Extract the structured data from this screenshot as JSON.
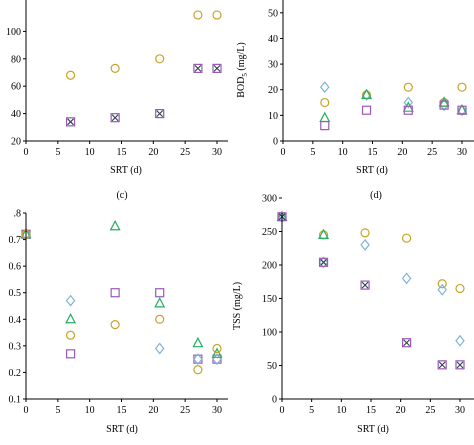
{
  "colors": {
    "circle": "#c9a227",
    "square": "#9b59b6",
    "triangle": "#27ae60",
    "diamond": "#7fb3d5",
    "x_mark": "#2c3e50"
  },
  "chart_data": [
    {
      "id": "top-left",
      "type": "scatter",
      "xlabel": "SRT (d)",
      "ylabel": "",
      "caption": "(c)",
      "xlim": [
        0,
        30
      ],
      "ylim": [
        20,
        120
      ],
      "xticks": [
        "0",
        "5",
        "10",
        "15",
        "20",
        "25",
        "30"
      ],
      "yticks": [
        "20",
        "40",
        "60",
        "80",
        "100"
      ],
      "grid": false,
      "series": [
        {
          "marker": "circle",
          "x": [
            7,
            14,
            21,
            27,
            30
          ],
          "y": [
            68,
            73,
            80,
            112,
            112
          ]
        },
        {
          "marker": "square",
          "x": [
            7,
            14,
            21,
            27,
            30
          ],
          "y": [
            34,
            37,
            40,
            73,
            73
          ]
        },
        {
          "marker": "x",
          "x": [
            7,
            14,
            21,
            27,
            30
          ],
          "y": [
            34,
            37,
            40,
            73,
            73
          ]
        }
      ]
    },
    {
      "id": "top-right",
      "type": "scatter",
      "xlabel": "SRT (d)",
      "ylabel": "BOD5 (mg/L)",
      "caption": "(d)",
      "xlim": [
        0,
        30
      ],
      "ylim": [
        0,
        55
      ],
      "xticks": [
        "0",
        "5",
        "10",
        "15",
        "20",
        "25",
        "30"
      ],
      "yticks": [
        "0",
        "10",
        "20",
        "30",
        "40",
        "50"
      ],
      "grid": false,
      "series": [
        {
          "marker": "diamond",
          "x": [
            7,
            14,
            21,
            27,
            30
          ],
          "y": [
            21,
            18,
            15,
            14,
            12
          ]
        },
        {
          "marker": "circle",
          "x": [
            7,
            14,
            21,
            27,
            30
          ],
          "y": [
            15,
            18,
            21,
            15,
            21
          ]
        },
        {
          "marker": "triangle",
          "x": [
            7,
            14,
            21,
            27,
            30
          ],
          "y": [
            9,
            18,
            13,
            15,
            12
          ]
        },
        {
          "marker": "square",
          "x": [
            7,
            14,
            21,
            27,
            30
          ],
          "y": [
            6,
            12,
            12,
            14,
            12
          ]
        }
      ]
    },
    {
      "id": "bottom-left",
      "type": "scatter",
      "xlabel": "SRT (d)",
      "ylabel": "",
      "xlim": [
        0,
        30
      ],
      "ylim": [
        0.1,
        0.8
      ],
      "xticks": [
        "0",
        "5",
        "10",
        "15",
        "20",
        "25",
        "30"
      ],
      "yticks": [
        ".8",
        "0.7",
        "0.6",
        "0.5",
        "0.4",
        "0.3",
        "0.2",
        "0.1"
      ],
      "grid": false,
      "series": [
        {
          "marker": "square",
          "x": [
            0,
            7,
            14,
            21,
            27,
            30
          ],
          "y": [
            0.72,
            0.27,
            0.5,
            0.5,
            0.25,
            0.25
          ]
        },
        {
          "marker": "diamond",
          "x": [
            0,
            7,
            21,
            27,
            30
          ],
          "y": [
            0.72,
            0.47,
            0.29,
            0.25,
            0.25
          ]
        },
        {
          "marker": "triangle",
          "x": [
            0,
            7,
            14,
            21,
            27,
            30
          ],
          "y": [
            0.72,
            0.4,
            0.75,
            0.46,
            0.31,
            0.27
          ]
        },
        {
          "marker": "circle",
          "x": [
            0,
            7,
            14,
            21,
            27,
            30
          ],
          "y": [
            0.72,
            0.34,
            0.38,
            0.4,
            0.21,
            0.29
          ]
        }
      ]
    },
    {
      "id": "bottom-right",
      "type": "scatter",
      "xlabel": "SRT (d)",
      "ylabel": "TSS (mg/L)",
      "xlim": [
        0,
        30
      ],
      "ylim": [
        0,
        300
      ],
      "xticks": [
        "0",
        "5",
        "10",
        "15",
        "20",
        "25",
        "30"
      ],
      "yticks": [
        "0",
        "50",
        "100",
        "150",
        "200",
        "250",
        "300"
      ],
      "grid": false,
      "series": [
        {
          "marker": "circle",
          "x": [
            0,
            7,
            14,
            21,
            27,
            30
          ],
          "y": [
            272,
            245,
            248,
            240,
            172,
            165
          ]
        },
        {
          "marker": "triangle",
          "x": [
            0,
            7
          ],
          "y": [
            272,
            245
          ]
        },
        {
          "marker": "diamond",
          "x": [
            0,
            7,
            14,
            21,
            27,
            30
          ],
          "y": [
            272,
            204,
            230,
            180,
            163,
            87
          ]
        },
        {
          "marker": "square",
          "x": [
            0,
            7,
            14,
            21,
            27,
            30
          ],
          "y": [
            272,
            204,
            170,
            84,
            51,
            51
          ]
        },
        {
          "marker": "x",
          "x": [
            0,
            7,
            14,
            21,
            27,
            30
          ],
          "y": [
            272,
            204,
            170,
            84,
            51,
            51
          ]
        }
      ]
    }
  ]
}
